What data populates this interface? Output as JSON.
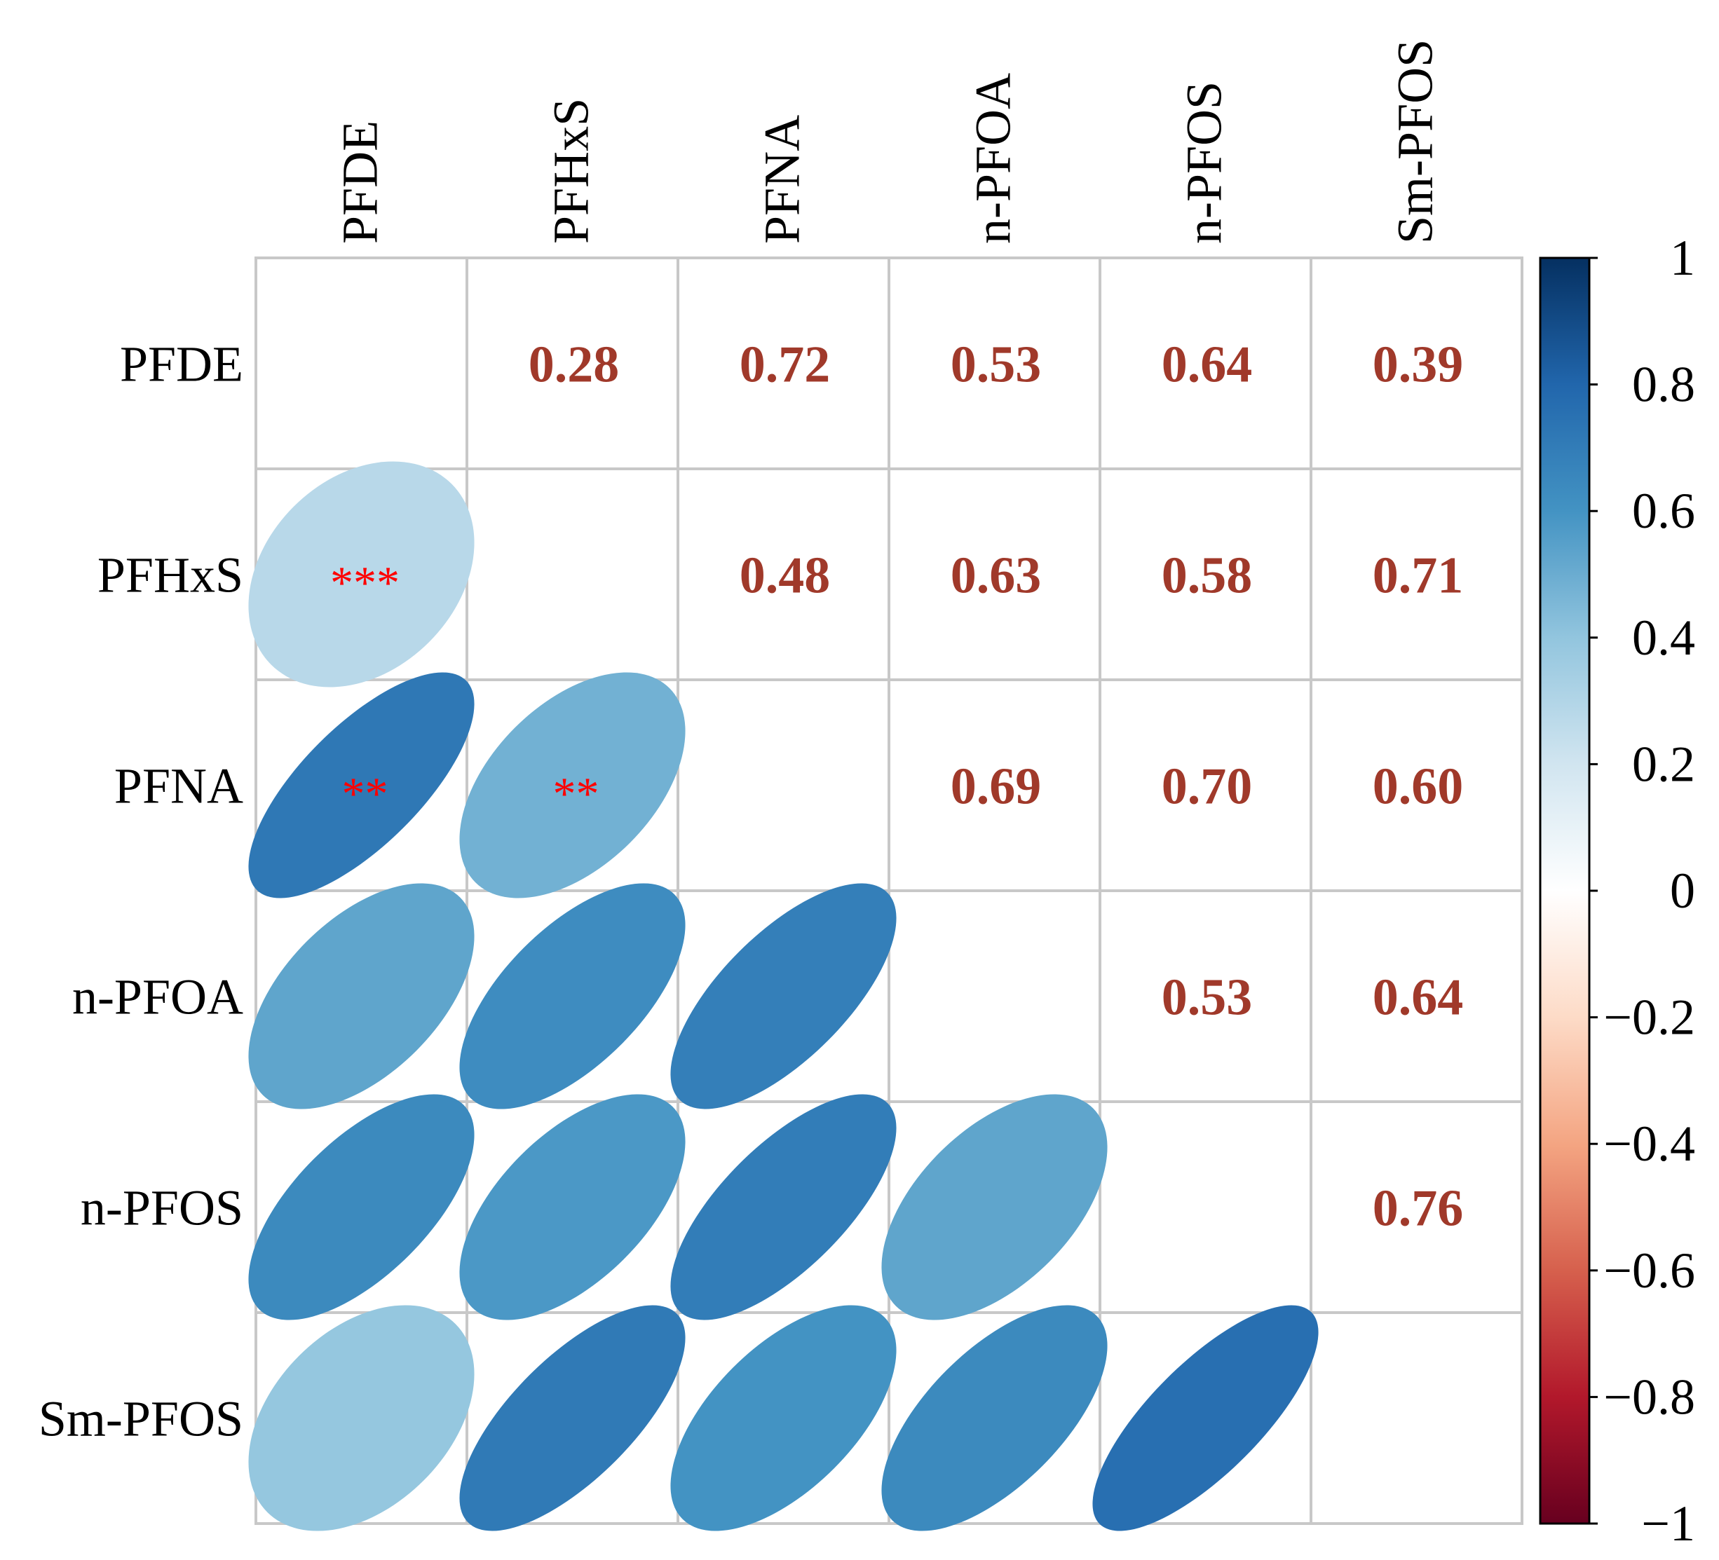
{
  "chart_data": {
    "type": "heatmap",
    "subtype": "correlation-matrix-mixed",
    "variables": [
      "PFDE",
      "PFHxS",
      "PFNA",
      "n-PFOA",
      "n-PFOS",
      "Sm-PFOS"
    ],
    "upper_display": "numbers",
    "lower_display": "ellipses",
    "correlations": [
      [
        null,
        0.28,
        0.72,
        0.53,
        0.64,
        0.39
      ],
      [
        0.28,
        null,
        0.48,
        0.63,
        0.58,
        0.71
      ],
      [
        0.72,
        0.48,
        null,
        0.69,
        0.7,
        0.6
      ],
      [
        0.53,
        0.63,
        0.69,
        null,
        0.53,
        0.64
      ],
      [
        0.64,
        0.58,
        0.7,
        0.53,
        null,
        0.76
      ],
      [
        0.39,
        0.71,
        0.6,
        0.64,
        0.76,
        null
      ]
    ],
    "cell_labels": [
      [
        null,
        "0.28",
        "0.72",
        "0.53",
        "0.64",
        "0.39"
      ],
      [
        null,
        null,
        "0.48",
        "0.63",
        "0.58",
        "0.71"
      ],
      [
        null,
        null,
        null,
        "0.69",
        "0.70",
        "0.60"
      ],
      [
        null,
        null,
        null,
        null,
        "0.53",
        "0.64"
      ],
      [
        null,
        null,
        null,
        null,
        null,
        "0.76"
      ],
      [
        null,
        null,
        null,
        null,
        null,
        null
      ]
    ],
    "significance": [
      {
        "row": 1,
        "col": 0,
        "label": "***"
      },
      {
        "row": 2,
        "col": 0,
        "label": "**"
      },
      {
        "row": 2,
        "col": 1,
        "label": "**"
      }
    ],
    "colorbar": {
      "range": [
        -1,
        1
      ],
      "ticks": [
        "1",
        "0.8",
        "0.6",
        "0.4",
        "0.2",
        "0",
        "−0.2",
        "−0.4",
        "−0.6",
        "−0.8",
        "−1"
      ]
    },
    "colors": {
      "value_text": "#a0392a",
      "significance": "#ff0000",
      "grid": "#c8c8c8",
      "colormap": [
        "#67001f",
        "#b2182b",
        "#d6604d",
        "#f4a582",
        "#fddbc7",
        "#ffffff",
        "#d1e5f0",
        "#92c5de",
        "#4393c3",
        "#2166ac",
        "#053061"
      ]
    }
  }
}
